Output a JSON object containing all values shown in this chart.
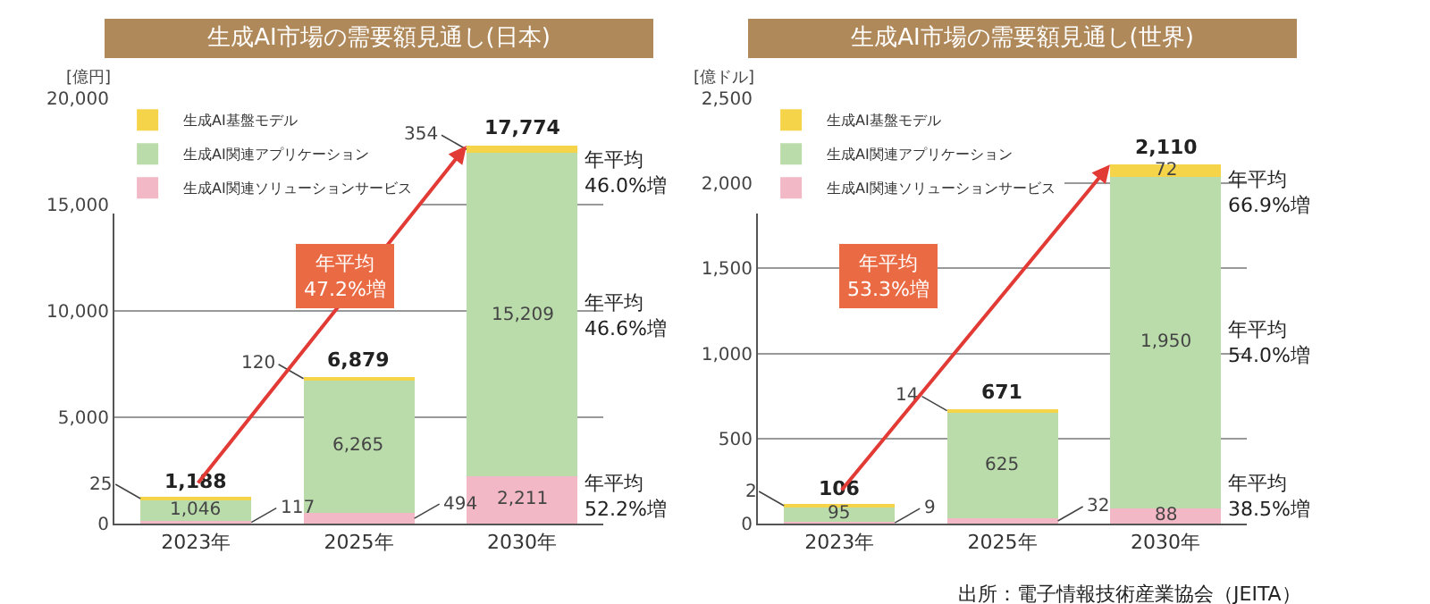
{
  "chart_data": [
    {
      "type": "bar",
      "title": "生成AI市場の需要額見通し(日本)",
      "ylabel": "[億円]",
      "categories": [
        "2023年",
        "2025年",
        "2030年"
      ],
      "stacked": true,
      "series": [
        {
          "name": "生成AI関連ソリューションサービス",
          "color": "#f2b8c6",
          "values": [
            117,
            494,
            2211
          ],
          "value_labels": [
            "117",
            "494",
            "2,211"
          ]
        },
        {
          "name": "生成AI関連アプリケーション",
          "color": "#badcab",
          "values": [
            1046,
            6265,
            15209
          ],
          "value_labels": [
            "1,046",
            "6,265",
            "15,209"
          ]
        },
        {
          "name": "生成AI基盤モデル",
          "color": "#f6d44a",
          "values": [
            25,
            120,
            354
          ],
          "value_labels": [
            "25",
            "120",
            "354"
          ]
        }
      ],
      "totals": [
        "1,188",
        "6,879",
        "17,774"
      ],
      "ylim": [
        0,
        20000
      ],
      "yticks": [
        {
          "value": 0,
          "label": "0"
        },
        {
          "value": 5000,
          "label": "5,000"
        },
        {
          "value": 10000,
          "label": "10,000"
        },
        {
          "value": 15000,
          "label": "15,000"
        },
        {
          "value": 20000,
          "label": "20,000"
        }
      ],
      "grid": "y",
      "legend": "top left",
      "annotations": [
        "年平均\n47.2%増",
        "年平均\n46.0%増",
        "年平均\n46.6%増",
        "年平均\n52.2%増"
      ]
    },
    {
      "type": "bar",
      "title": "生成AI市場の需要額見通し(世界)",
      "ylabel": "[億ドル]",
      "categories": [
        "2023年",
        "2025年",
        "2030年"
      ],
      "stacked": true,
      "series": [
        {
          "name": "生成AI関連ソリューションサービス",
          "color": "#f2b8c6",
          "values": [
            9,
            32,
            88
          ],
          "value_labels": [
            "9",
            "32",
            "88"
          ]
        },
        {
          "name": "生成AI関連アプリケーション",
          "color": "#badcab",
          "values": [
            95,
            625,
            1950
          ],
          "value_labels": [
            "95",
            "625",
            "1,950"
          ]
        },
        {
          "name": "生成AI基盤モデル",
          "color": "#f6d44a",
          "values": [
            2,
            14,
            72
          ],
          "value_labels": [
            "2",
            "14",
            "72"
          ]
        }
      ],
      "totals": [
        "106",
        "671",
        "2,110"
      ],
      "ylim": [
        0,
        2500
      ],
      "yticks": [
        {
          "value": 0,
          "label": "0"
        },
        {
          "value": 500,
          "label": "500"
        },
        {
          "value": 1000,
          "label": "1,000"
        },
        {
          "value": 1500,
          "label": "1,500"
        },
        {
          "value": 2000,
          "label": "2,000"
        },
        {
          "value": 2500,
          "label": "2,500"
        }
      ],
      "grid": "y",
      "legend": "top left",
      "annotations": [
        "年平均\n53.3%増",
        "年平均\n66.9%増",
        "年平均\n54.0%増",
        "年平均\n38.5%増",
        "出所：電子情報技術産業協会（JEITA）"
      ]
    }
  ]
}
